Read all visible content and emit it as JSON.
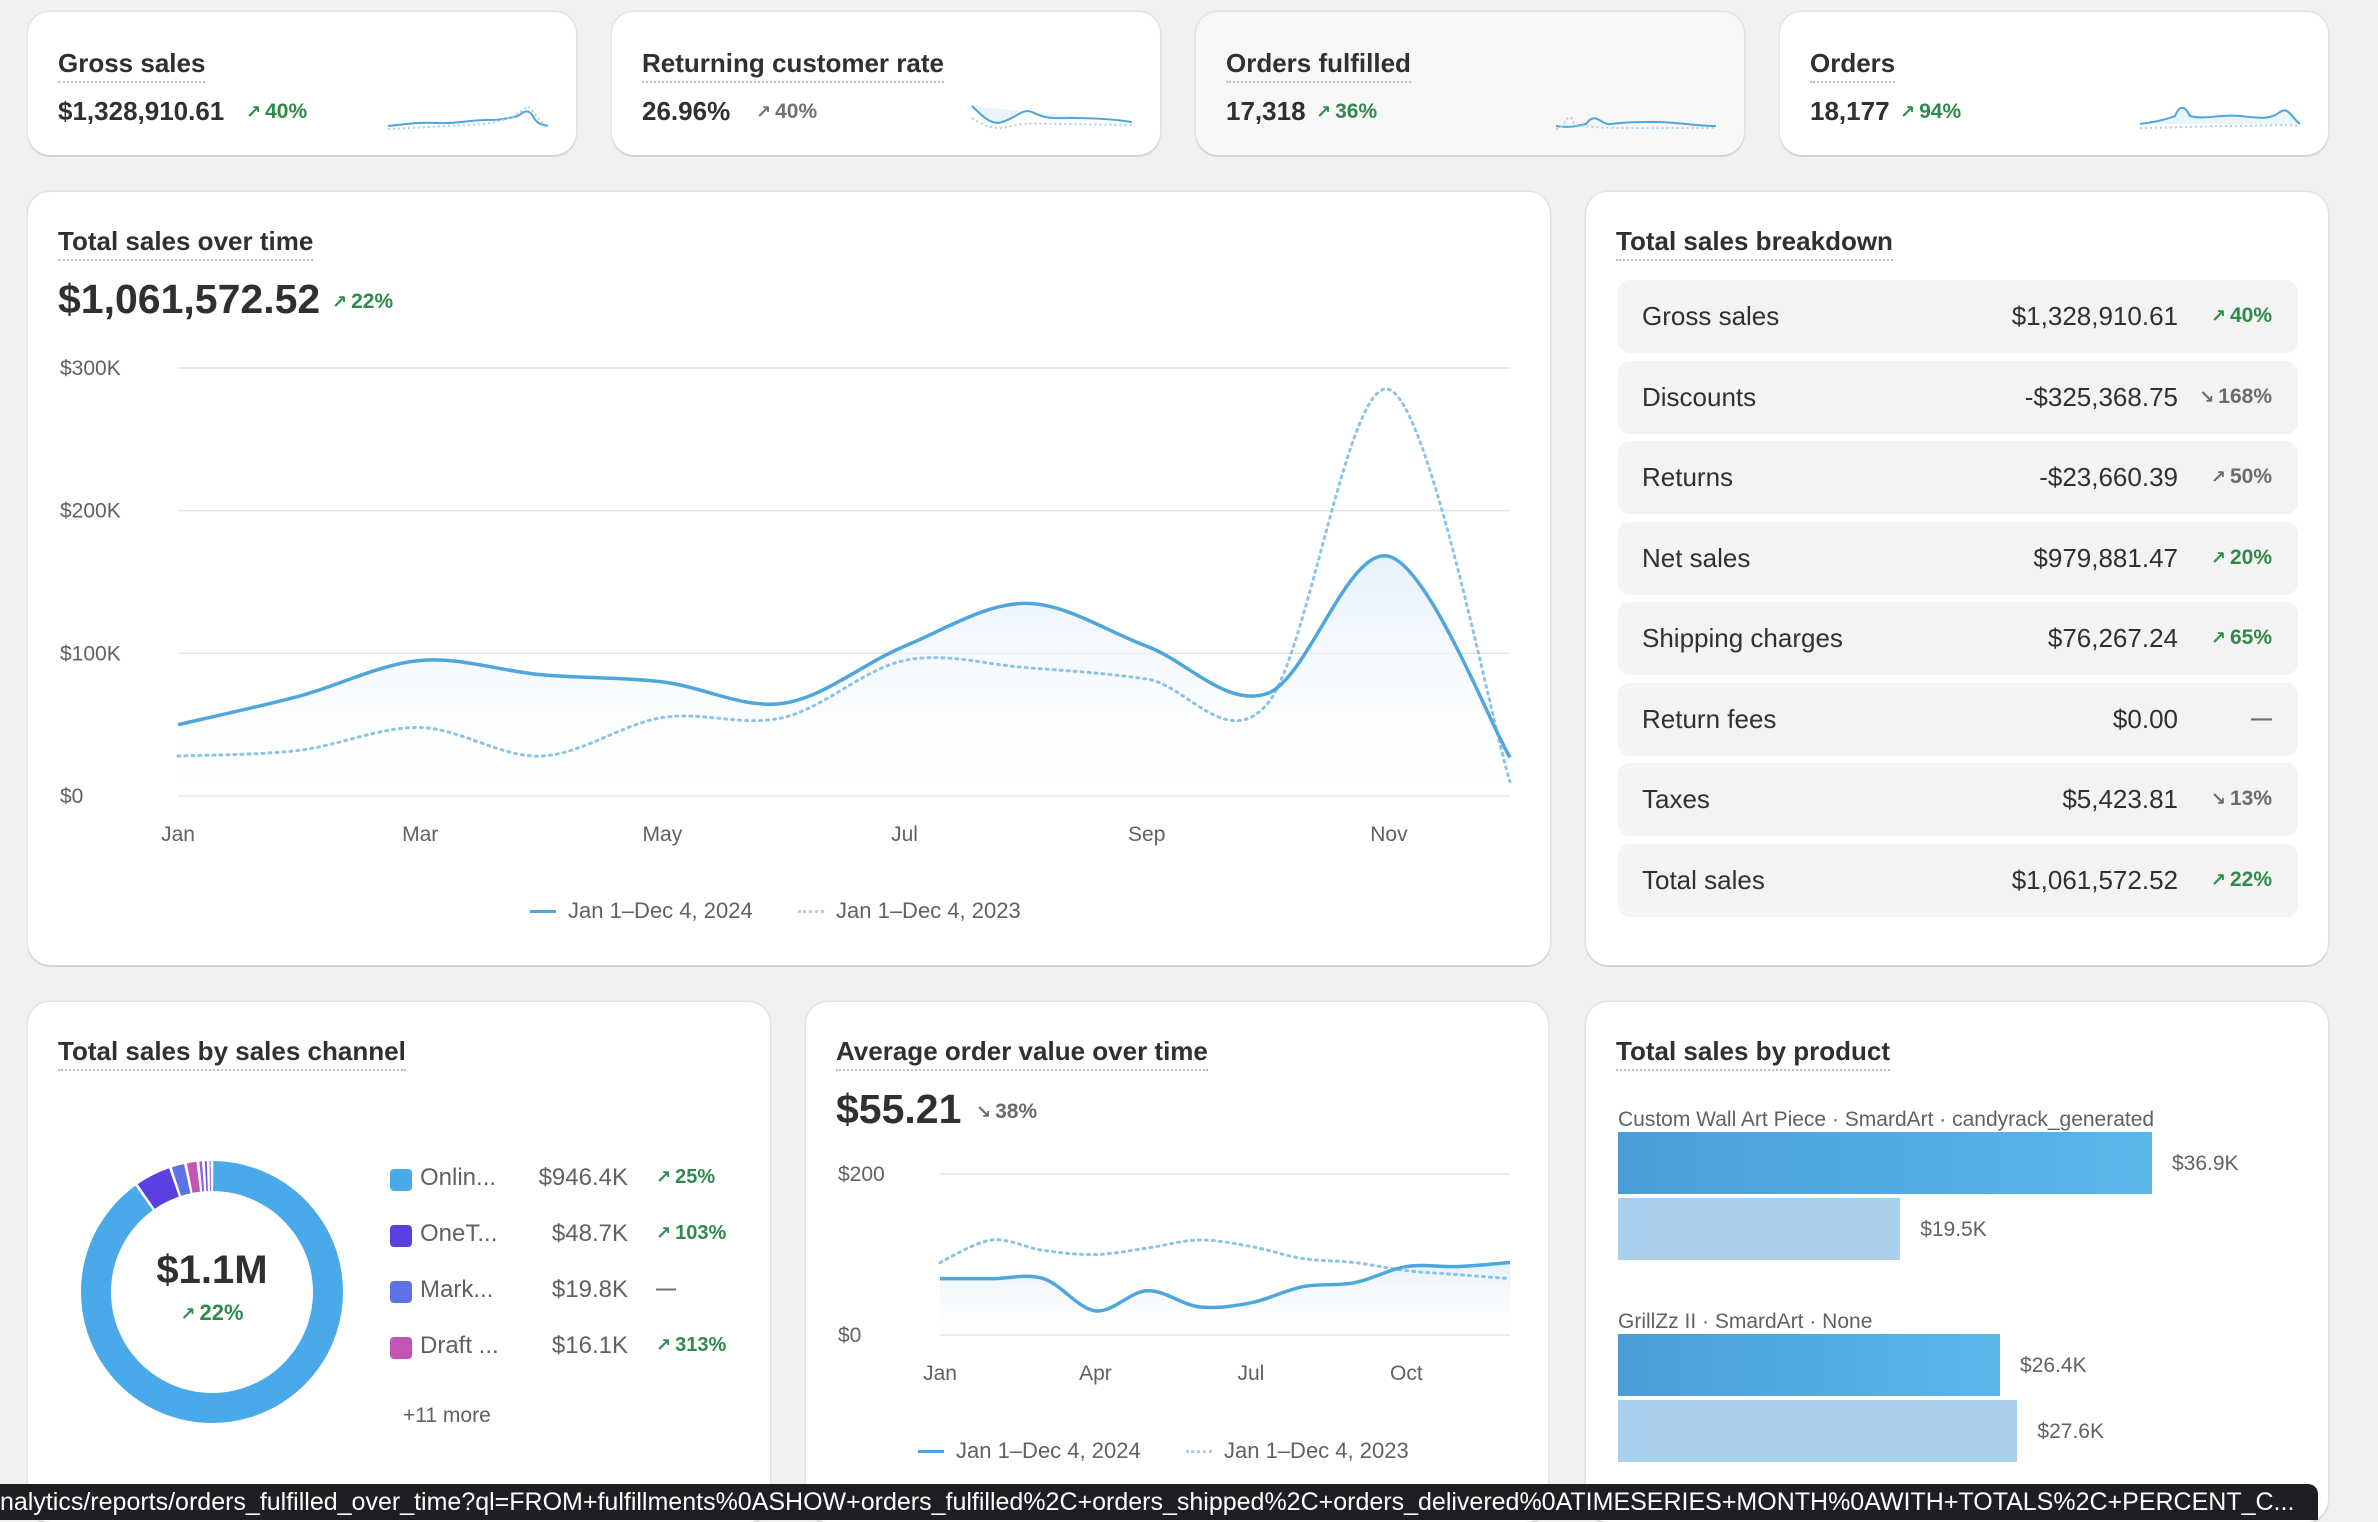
{
  "kpis": [
    {
      "title": "Gross sales",
      "value": "$1,328,910.61",
      "delta": "40%",
      "dir": "up"
    },
    {
      "title": "Returning customer rate",
      "value": "26.96%",
      "delta": "40%",
      "dir": "neutral"
    },
    {
      "title": "Orders fulfilled",
      "value": "17,318",
      "delta": "36%",
      "dir": "up"
    },
    {
      "title": "Orders",
      "value": "18,177",
      "delta": "94%",
      "dir": "up"
    }
  ],
  "sales_over_time": {
    "title": "Total sales over time",
    "total": "$1,061,572.52",
    "delta": "22%",
    "legend_current": "Jan 1–Dec 4, 2024",
    "legend_previous": "Jan 1–Dec 4, 2023"
  },
  "breakdown": {
    "title": "Total sales breakdown",
    "rows": [
      {
        "label": "Gross sales",
        "value": "$1,328,910.61",
        "delta": "40%",
        "dir": "up"
      },
      {
        "label": "Discounts",
        "value": "-$325,368.75",
        "delta": "168%",
        "dir": "down"
      },
      {
        "label": "Returns",
        "value": "-$23,660.39",
        "delta": "50%",
        "dir": "down-up"
      },
      {
        "label": "Net sales",
        "value": "$979,881.47",
        "delta": "20%",
        "dir": "up"
      },
      {
        "label": "Shipping charges",
        "value": "$76,267.24",
        "delta": "65%",
        "dir": "up"
      },
      {
        "label": "Return fees",
        "value": "$0.00",
        "delta": "—",
        "dir": "flat"
      },
      {
        "label": "Taxes",
        "value": "$5,423.81",
        "delta": "13%",
        "dir": "down"
      },
      {
        "label": "Total sales",
        "value": "$1,061,572.52",
        "delta": "22%",
        "dir": "up"
      }
    ]
  },
  "channels": {
    "title": "Total sales by sales channel",
    "center_value": "$1.1M",
    "center_delta": "22%",
    "rows": [
      {
        "name": "Onlin...",
        "value": "$946.4K",
        "delta": "25%",
        "color": "#4aa9e8"
      },
      {
        "name": "OneT...",
        "value": "$48.7K",
        "delta": "103%",
        "color": "#5b3fe0"
      },
      {
        "name": "Mark...",
        "value": "$19.8K",
        "delta": "—",
        "color": "#5b73e3"
      },
      {
        "name": "Draft ...",
        "value": "$16.1K",
        "delta": "313%",
        "color": "#c455b5"
      }
    ],
    "more": "+11 more"
  },
  "aov": {
    "title": "Average order value over time",
    "value": "$55.21",
    "delta": "38%",
    "legend_current": "Jan 1–Dec 4, 2024",
    "legend_previous": "Jan 1–Dec 4, 2023"
  },
  "products": {
    "title": "Total sales by product",
    "items": [
      {
        "label": "Custom Wall Art Piece · SmardArt · candyrack_generated",
        "current": "$36.9K",
        "previous": "$19.5K",
        "current_value": 36.9,
        "previous_value": 19.5
      },
      {
        "label": "GrillZz II · SmardArt · None",
        "current": "$26.4K",
        "previous": "$27.6K",
        "current_value": 26.4,
        "previous_value": 27.6
      }
    ]
  },
  "status_url": "nalytics/reports/orders_fulfilled_over_time?ql=FROM+fulfillments%0ASHOW+orders_fulfilled%2C+orders_shipped%2C+orders_delivered%0ATIMESERIES+MONTH%0AWITH+TOTALS%2C+PERCENT_C...",
  "chart_data": [
    {
      "type": "line",
      "title": "Total sales over time",
      "x": [
        "Jan",
        "Feb",
        "Mar",
        "Apr",
        "May",
        "Jun",
        "Jul",
        "Aug",
        "Sep",
        "Oct",
        "Nov",
        "Dec"
      ],
      "ylim": [
        0,
        300000
      ],
      "yticks": [
        "$0",
        "$100K",
        "$200K",
        "$300K"
      ],
      "xticks": [
        "Jan",
        "Mar",
        "May",
        "Jul",
        "Sep",
        "Nov"
      ],
      "series": [
        {
          "name": "Jan 1–Dec 4, 2024",
          "values": [
            50000,
            70000,
            95000,
            85000,
            80000,
            65000,
            105000,
            135000,
            105000,
            72000,
            168000,
            27000
          ]
        },
        {
          "name": "Jan 1–Dec 4, 2023",
          "values": [
            28000,
            32000,
            48000,
            28000,
            55000,
            55000,
            95000,
            90000,
            82000,
            65000,
            285000,
            10000
          ]
        }
      ]
    },
    {
      "type": "line",
      "title": "Average order value over time",
      "x": [
        "Jan",
        "Feb",
        "Mar",
        "Apr",
        "May",
        "Jun",
        "Jul",
        "Aug",
        "Sep",
        "Oct",
        "Nov",
        "Dec"
      ],
      "ylim": [
        0,
        200
      ],
      "yticks": [
        "$0",
        "$200"
      ],
      "xticks": [
        "Jan",
        "Apr",
        "Jul",
        "Oct"
      ],
      "series": [
        {
          "name": "Jan 1–Dec 4, 2024",
          "values": [
            70,
            70,
            70,
            30,
            55,
            35,
            40,
            60,
            65,
            85,
            85,
            90
          ]
        },
        {
          "name": "Jan 1–Dec 4, 2023",
          "values": [
            90,
            118,
            105,
            100,
            108,
            118,
            110,
            95,
            90,
            80,
            75,
            70
          ]
        }
      ]
    },
    {
      "type": "pie",
      "title": "Total sales by sales channel",
      "categories": [
        "Onlin...",
        "OneT...",
        "Mark...",
        "Draft ..."
      ],
      "values": [
        946.4,
        48.7,
        19.8,
        16.1
      ]
    },
    {
      "type": "bar",
      "title": "Total sales by product",
      "categories": [
        "Custom Wall Art Piece · SmardArt · candyrack_generated",
        "GrillZz II · SmardArt · None"
      ],
      "series": [
        {
          "name": "Jan 1–Dec 4, 2024",
          "values": [
            36.9,
            26.4
          ]
        },
        {
          "name": "Jan 1–Dec 4, 2023",
          "values": [
            19.5,
            27.6
          ]
        }
      ]
    }
  ],
  "colors": {
    "accent": "#4ea6dc",
    "accent_light": "#a9d1ee",
    "positive": "#2e8a4a"
  }
}
